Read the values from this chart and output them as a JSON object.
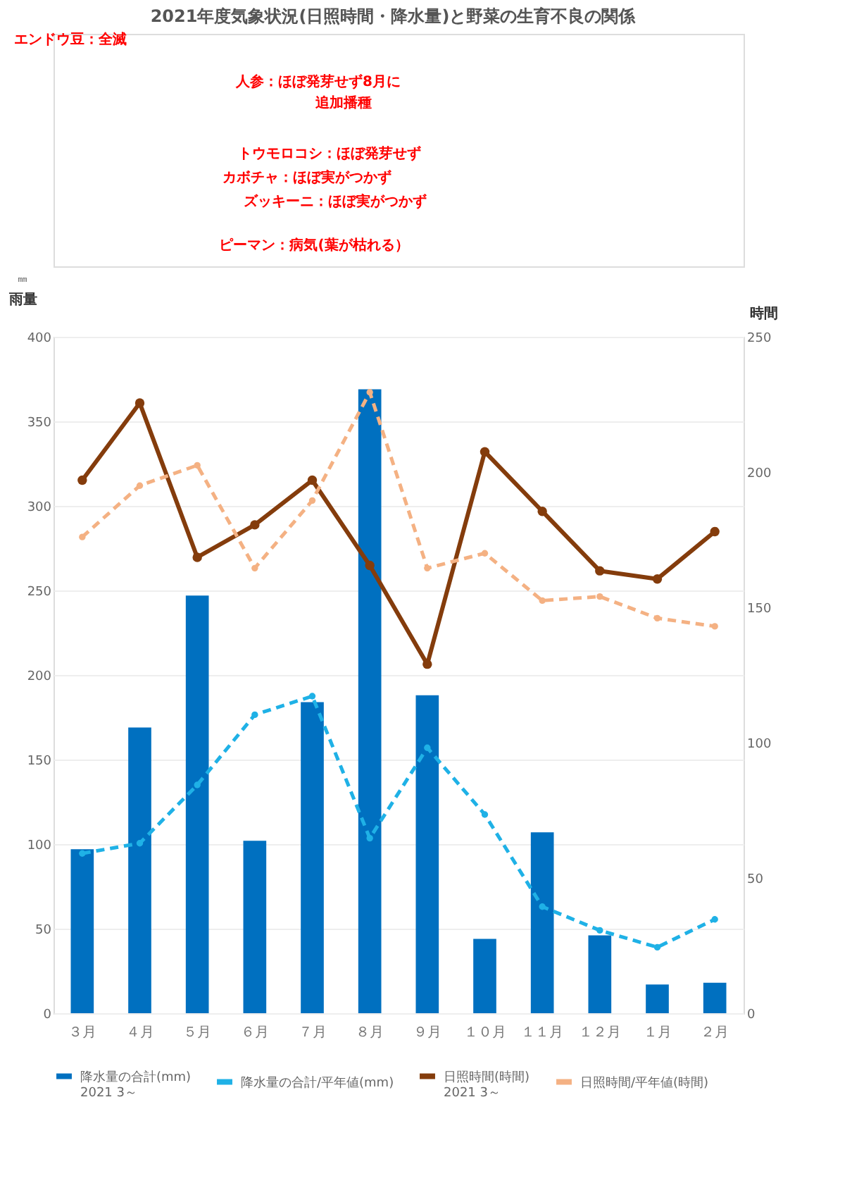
{
  "chart_data": {
    "type": "bar",
    "title": "2021年度気象状況(日照時間・降水量)と野菜の生育不良の関係",
    "categories": [
      "３月",
      "４月",
      "５月",
      "６月",
      "７月",
      "８月",
      "９月",
      "１０月",
      "１１月",
      "１２月",
      "１月",
      "２月"
    ],
    "series": [
      {
        "name": "降水量の合計(mm)\n2021 3～",
        "axis": "y",
        "color": "#0070c0",
        "values": [
          97,
          169,
          247,
          102,
          184,
          369,
          188,
          44,
          107,
          46,
          17,
          18
        ]
      },
      {
        "name": "降水量の合計/平年値(mm)",
        "type": "line",
        "axis": "y",
        "color": "#1fb1e6",
        "line_style": "dashed",
        "marker": "circle",
        "values": [
          94.5,
          100.5,
          135,
          176.5,
          187.5,
          103.5,
          157,
          117.5,
          63,
          49,
          39,
          55.5
        ]
      },
      {
        "name": "日照時間(時間)\n2021 3～",
        "type": "line",
        "axis": "y2",
        "color": "#843c0c",
        "line_style": "solid",
        "marker": "circle",
        "values": [
          197,
          225.5,
          168.5,
          180.5,
          197,
          165.5,
          129,
          207.5,
          185.5,
          163.5,
          160.5,
          178
        ]
      },
      {
        "name": "日照時間/平年値(時間)",
        "type": "line",
        "axis": "y2",
        "color": "#f4b183",
        "line_style": "dashed",
        "marker": "circle",
        "values": [
          176,
          195,
          202.5,
          164.5,
          189.5,
          229.5,
          164.5,
          170,
          152.5,
          154,
          146,
          143
        ]
      }
    ],
    "ylabel": "雨量",
    "y2label": "時間",
    "ylim": [
      0,
      400
    ],
    "yticks": [
      0,
      50,
      100,
      150,
      200,
      250,
      300,
      350,
      400
    ],
    "y2lim": [
      0,
      250
    ],
    "y2ticks": [
      0,
      50,
      100,
      150,
      200,
      250
    ],
    "grid": "y",
    "legend": "bottom",
    "annotations": [
      "エンドウ豆：全滅",
      "人参：ほぼ発芽せず8月に",
      "追加播種",
      "トウモロコシ：ほぼ発芽せず",
      "カボチャ：ほぼ実がつかず",
      "ズッキーニ：ほぼ実がつかず",
      "ピーマン：病気(葉が枯れる）",
      "㎜"
    ]
  }
}
